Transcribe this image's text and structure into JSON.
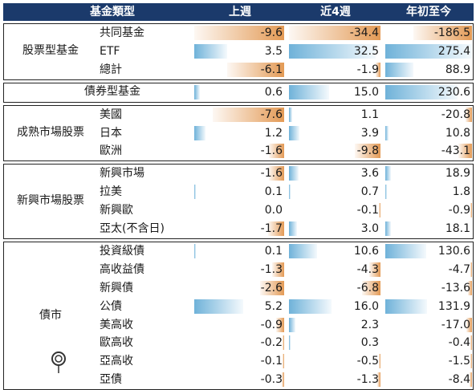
{
  "header": {
    "category": "基金類型",
    "col1": "上週",
    "col2": "近4週",
    "col3": "年初至今"
  },
  "colors": {
    "header_bg": "#1b3a6b",
    "negative": "#e39a55",
    "positive": "#6fb2d9"
  },
  "chart_data": {
    "type": "table",
    "columns": [
      "上週",
      "近4週",
      "年初至今"
    ],
    "groups": [
      {
        "name": "股票型基金",
        "rows": [
          {
            "label": "共同基金",
            "values": [
              -9.6,
              -34.4,
              -186.5
            ]
          },
          {
            "label": "ETF",
            "values": [
              3.5,
              32.5,
              275.4
            ]
          },
          {
            "label": "總計",
            "values": [
              -6.1,
              -1.9,
              88.9
            ]
          }
        ]
      },
      {
        "name": "債券型基金",
        "rows": [
          {
            "label": "",
            "values": [
              0.6,
              15.0,
              230.6
            ]
          }
        ]
      },
      {
        "name": "成熟市場股票",
        "rows": [
          {
            "label": "美國",
            "values": [
              -7.6,
              1.1,
              -20.8
            ]
          },
          {
            "label": "日本",
            "values": [
              1.2,
              3.9,
              10.8
            ]
          },
          {
            "label": "歐洲",
            "values": [
              -1.6,
              -9.8,
              -43.1
            ]
          }
        ]
      },
      {
        "name": "新興市場股票",
        "rows": [
          {
            "label": "新興市場",
            "values": [
              -1.6,
              3.6,
              18.9
            ]
          },
          {
            "label": "拉美",
            "values": [
              0.1,
              0.7,
              1.8
            ]
          },
          {
            "label": "新興歐",
            "values": [
              0.0,
              -0.1,
              -0.9
            ]
          },
          {
            "label": "亞太(不含日)",
            "values": [
              -1.7,
              3.0,
              18.1
            ]
          }
        ]
      },
      {
        "name": "債市",
        "rows": [
          {
            "label": "投資級債",
            "values": [
              0.1,
              10.6,
              130.6
            ]
          },
          {
            "label": "高收益債",
            "values": [
              -1.3,
              -4.3,
              -4.7
            ]
          },
          {
            "label": "新興債",
            "values": [
              -2.6,
              -6.8,
              -13.6
            ]
          },
          {
            "label": "公債",
            "values": [
              5.2,
              16.0,
              131.9
            ]
          },
          {
            "label": "美高收",
            "values": [
              -0.9,
              2.3,
              -17.0
            ]
          },
          {
            "label": "歐高收",
            "values": [
              -0.2,
              0.3,
              -0.4
            ]
          },
          {
            "label": "亞高收",
            "values": [
              -0.1,
              -0.5,
              -1.5
            ]
          },
          {
            "label": "亞債",
            "values": [
              -0.3,
              -1.3,
              -8.4
            ]
          }
        ]
      }
    ]
  }
}
